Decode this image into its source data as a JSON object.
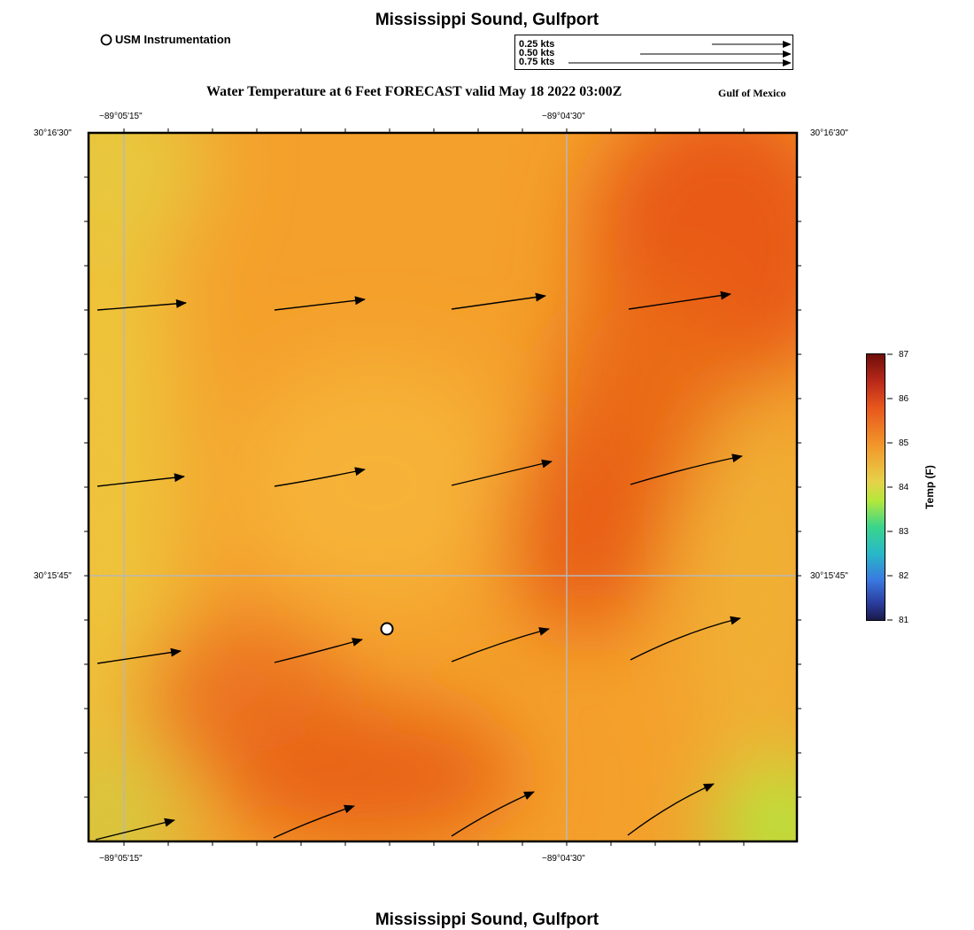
{
  "header": {
    "title": "Mississippi Sound, Gulfport",
    "station_legend": "USM Instrumentation",
    "map_title": "Water Temperature at 6 Feet FORECAST valid May 18 2022 03:00Z",
    "region": "Gulf of Mexico"
  },
  "vector_legend": {
    "items": [
      {
        "label": "0.25 kts",
        "speed": 0.25
      },
      {
        "label": "0.50 kts",
        "speed": 0.5
      },
      {
        "label": "0.75 kts",
        "speed": 0.75
      }
    ]
  },
  "axes": {
    "lon_labels": [
      "−89°05'15\"",
      "−89°04'30\""
    ],
    "lat_labels": [
      "30°16'30\"",
      "30°15'45\""
    ]
  },
  "colorbar": {
    "label": "Temp (F)",
    "ticks": [
      "87",
      "86",
      "85",
      "84",
      "83",
      "82",
      "81"
    ],
    "min": 81,
    "max": 87
  },
  "footer": {
    "title": "Mississippi Sound, Gulfport"
  },
  "colors": {
    "warm_orange": "#f4a02c",
    "hot_orange": "#e85a14",
    "yellow": "#f0c83c",
    "green": "#b4e83c"
  },
  "icons": {
    "station": "circle-marker-icon",
    "vector": "arrow-icon"
  }
}
